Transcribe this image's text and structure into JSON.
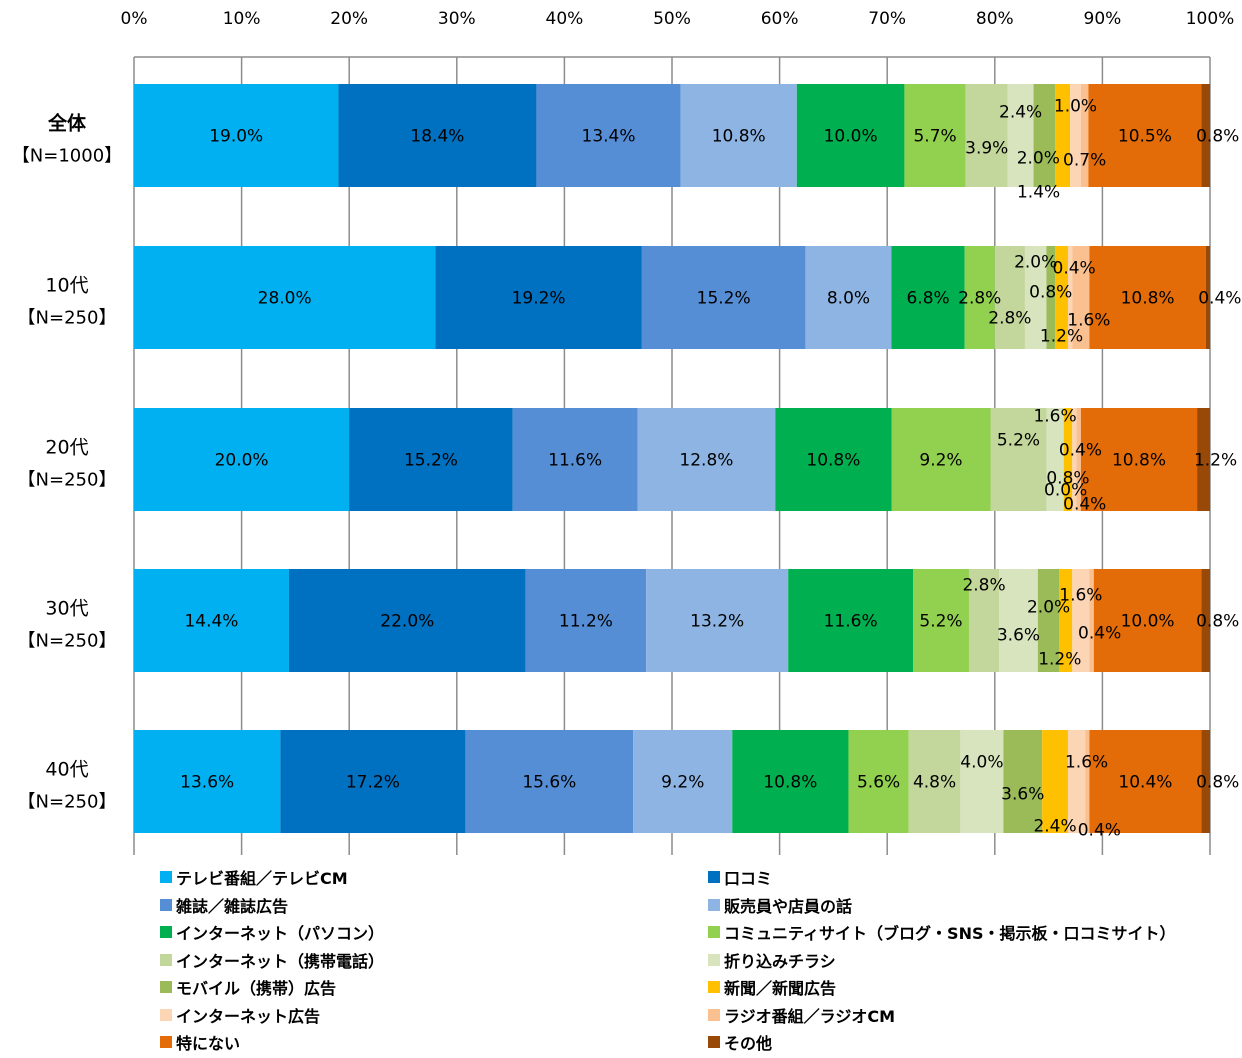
{
  "chart_data": {
    "type": "bar",
    "orientation": "horizontal",
    "stacked": true,
    "percent": true,
    "xlim": [
      0,
      100
    ],
    "x_ticks": [
      "0%",
      "10%",
      "20%",
      "30%",
      "40%",
      "50%",
      "60%",
      "70%",
      "80%",
      "90%",
      "100%"
    ],
    "grid": true,
    "legend_position": "bottom",
    "categories": [
      {
        "main": "全体",
        "sub": "【N=1000】"
      },
      {
        "main": "10代",
        "sub": "【N=250】"
      },
      {
        "main": "20代",
        "sub": "【N=250】"
      },
      {
        "main": "30代",
        "sub": "【N=250】"
      },
      {
        "main": "40代",
        "sub": "【N=250】"
      }
    ],
    "series": [
      {
        "name": "テレビ番組／テレビCM",
        "color": "#00b0f0",
        "values": [
          19.0,
          28.0,
          20.0,
          14.4,
          13.6
        ]
      },
      {
        "name": "口コミ",
        "color": "#0070c0",
        "values": [
          18.4,
          19.2,
          15.2,
          22.0,
          17.2
        ]
      },
      {
        "name": "雑誌／雑誌広告",
        "color": "#558ed5",
        "values": [
          13.4,
          15.2,
          11.6,
          11.2,
          15.6
        ]
      },
      {
        "name": "販売員や店員の話",
        "color": "#8eb4e3",
        "values": [
          10.8,
          8.0,
          12.8,
          13.2,
          9.2
        ]
      },
      {
        "name": "インターネット（パソコン）",
        "color": "#00b050",
        "values": [
          10.0,
          6.8,
          10.8,
          11.6,
          10.8
        ]
      },
      {
        "name": "コミュニティサイト（ブログ・SNS・掲示板・口コミサイト）",
        "color": "#92d050",
        "values": [
          5.7,
          2.8,
          9.2,
          5.2,
          5.6
        ]
      },
      {
        "name": "インターネット（携帯電話）",
        "color": "#c3d69b",
        "values": [
          3.9,
          2.8,
          5.2,
          2.8,
          4.8
        ]
      },
      {
        "name": "折り込みチラシ",
        "color": "#d7e4bd",
        "values": [
          2.4,
          2.0,
          1.6,
          3.6,
          4.0
        ]
      },
      {
        "name": "モバイル（携帯）広告",
        "color": "#9bbb59",
        "values": [
          2.0,
          0.8,
          0.0,
          2.0,
          3.6
        ]
      },
      {
        "name": "新聞／新聞広告",
        "color": "#ffc000",
        "values": [
          1.4,
          1.2,
          0.8,
          1.2,
          2.4
        ]
      },
      {
        "name": "インターネット広告",
        "color": "#fcd5b5",
        "values": [
          1.0,
          0.4,
          0.4,
          1.6,
          1.6
        ]
      },
      {
        "name": "ラジオ番組／ラジオCM",
        "color": "#fac090",
        "values": [
          0.7,
          1.6,
          0.4,
          0.4,
          0.4
        ]
      },
      {
        "name": "特にない",
        "color": "#e36c09",
        "values": [
          10.5,
          10.8,
          10.8,
          10.0,
          10.4
        ]
      },
      {
        "name": "その他",
        "color": "#984807",
        "values": [
          0.8,
          0.4,
          1.2,
          0.8,
          0.8
        ]
      }
    ]
  }
}
